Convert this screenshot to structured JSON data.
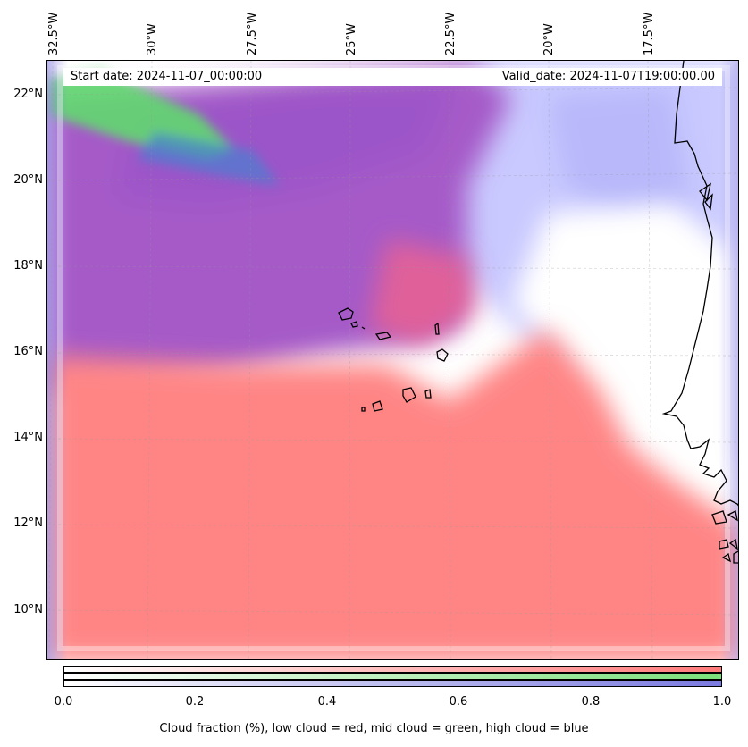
{
  "header": {
    "start_date": "Start date: 2024-11-07_00:00:00",
    "valid_date": "Valid_date: 2024-11-07T19:00:00.00"
  },
  "lon_labels": [
    "32.5°W",
    "30°W",
    "27.5°W",
    "25°W",
    "22.5°W",
    "20°W",
    "17.5°W"
  ],
  "lat_labels": [
    "22°N",
    "20°N",
    "18°N",
    "16°N",
    "14°N",
    "12°N",
    "10°N"
  ],
  "colorbar": {
    "ticks": [
      "0.0",
      "0.2",
      "0.4",
      "0.6",
      "0.8",
      "1.0"
    ],
    "label": "Cloud fraction (%), low cloud = red, mid cloud = green, high cloud = blue",
    "colors": {
      "low": "#ff7a7a",
      "mid": "#7be07b",
      "high": "#7a7ae0"
    }
  }
}
